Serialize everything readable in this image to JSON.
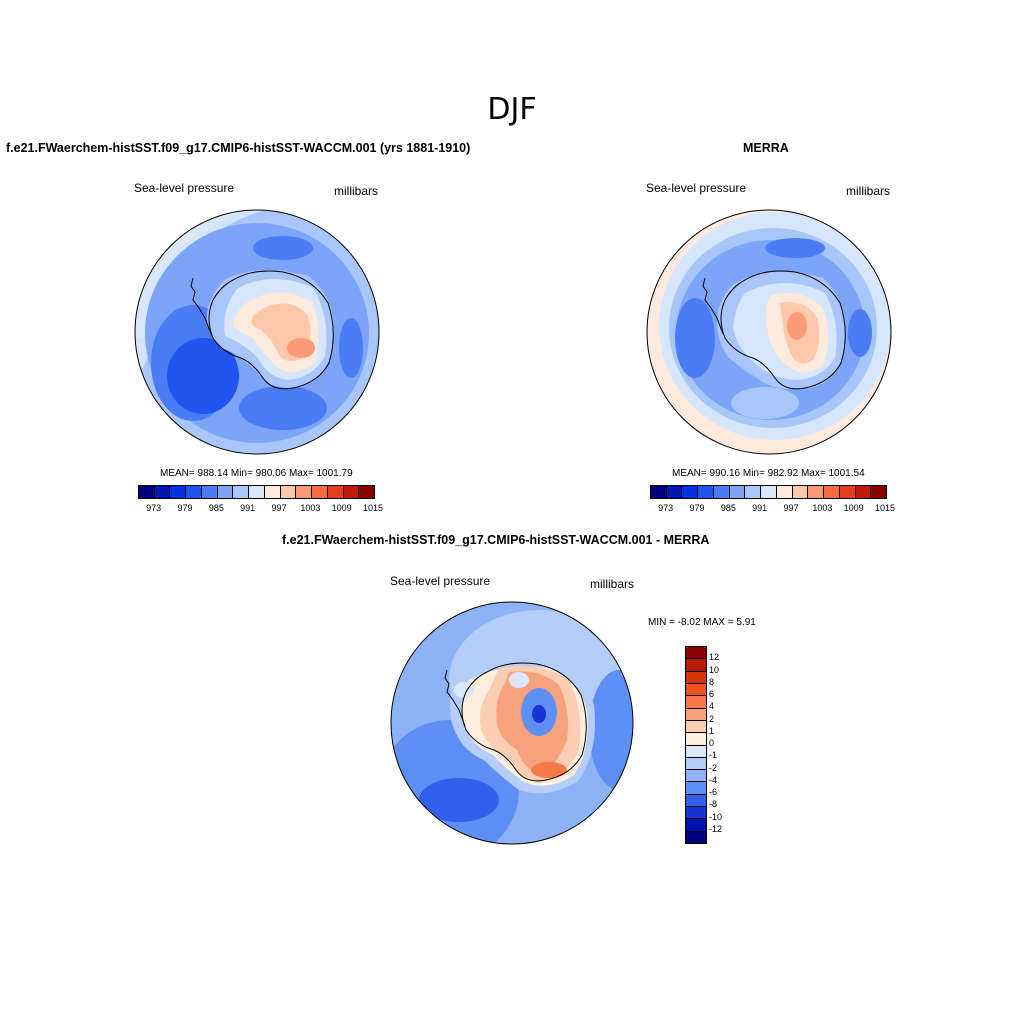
{
  "title": "DJF",
  "panels": {
    "model": {
      "title": "f.e21.FWaerchem-histSST.f09_g17.CMIP6-histSST-WACCM.001 (yrs 1881-1910)",
      "left_label": "Sea-level pressure",
      "right_label": "millibars",
      "stats": "MEAN= 988.14  Min= 980.06  Max= 1001.79"
    },
    "obs": {
      "title": "MERRA",
      "left_label": "Sea-level pressure",
      "right_label": "millibars",
      "stats": "MEAN= 990.16  Min= 982.92  Max= 1001.54"
    },
    "diff": {
      "title": "f.e21.FWaerchem-histSST.f09_g17.CMIP6-histSST-WACCM.001 - MERRA",
      "left_label": "Sea-level pressure",
      "right_label": "millibars",
      "minmax": "MIN =  -8.02 MAX =   5.91"
    }
  },
  "colorbar_abs": {
    "colors": [
      "#00007f",
      "#0018b2",
      "#0033dd",
      "#2255f0",
      "#4a7cf5",
      "#7ca4f9",
      "#a9c6fb",
      "#d6e6fc",
      "#fdeadc",
      "#fcc7ab",
      "#f99b76",
      "#f56c45",
      "#e63d1a",
      "#c21c08",
      "#8b0000"
    ],
    "tick_labels": [
      "973",
      "979",
      "985",
      "991",
      "997",
      "1003",
      "1009",
      "1015"
    ]
  },
  "colorbar_diff": {
    "colors": [
      "#8b0000",
      "#b71a03",
      "#d9350a",
      "#ee5220",
      "#f57a47",
      "#f8a27d",
      "#fbcdb2",
      "#fdeede",
      "#dbe7fb",
      "#b4cdfa",
      "#8eb2f8",
      "#5e8ff5",
      "#3060ec",
      "#1535d3",
      "#0010b0",
      "#00007f"
    ],
    "tick_labels": [
      "12",
      "10",
      "8",
      "6",
      "4",
      "2",
      "1",
      "0",
      "-1",
      "-2",
      "-4",
      "-6",
      "-8",
      "-10",
      "-12"
    ]
  }
}
